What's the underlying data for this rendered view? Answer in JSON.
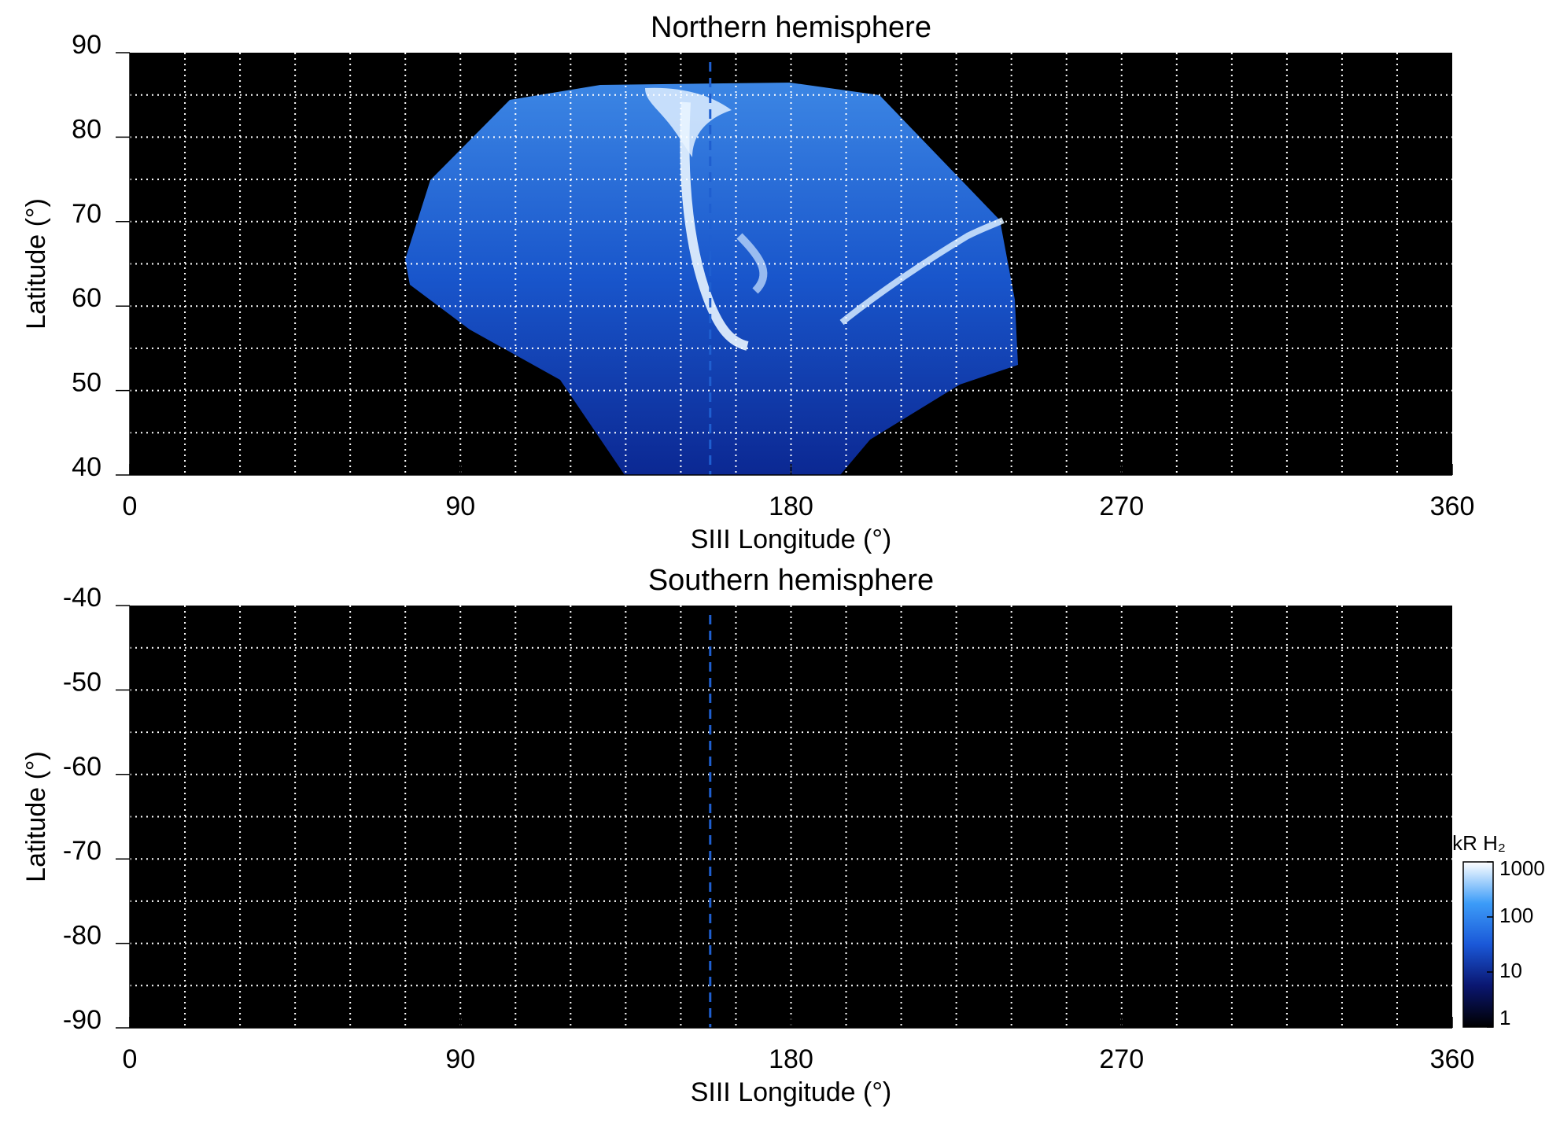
{
  "chart_data": [
    {
      "type": "heatmap",
      "title": "Northern hemisphere",
      "x_label": "SIII Longitude (°)",
      "y_label": "Latitude (°)",
      "xlim": [
        0,
        360
      ],
      "xticks": [
        0,
        90,
        180,
        270,
        360
      ],
      "ylim": [
        40,
        90
      ],
      "yticks": [
        40,
        50,
        60,
        70,
        80,
        90
      ],
      "xgrid": [
        15,
        30,
        45,
        60,
        75,
        90,
        105,
        120,
        135,
        150,
        165,
        180,
        195,
        210,
        225,
        240,
        255,
        270,
        285,
        300,
        315,
        330,
        345
      ],
      "ygrid": [
        45,
        50,
        55,
        60,
        65,
        70,
        75,
        80,
        85
      ],
      "reference_longitude": 158,
      "reference_color": "#1f5fd0",
      "background": "#000000",
      "grid_color": "#ffffff"
    },
    {
      "type": "heatmap",
      "title": "Southern hemisphere",
      "x_label": "SIII Longitude (°)",
      "y_label": "Latitude (°)",
      "xlim": [
        0,
        360
      ],
      "xticks": [
        0,
        90,
        180,
        270,
        360
      ],
      "ylim": [
        -90,
        -40
      ],
      "yticks": [
        -90,
        -80,
        -70,
        -60,
        -50,
        -40
      ],
      "xgrid": [
        15,
        30,
        45,
        60,
        75,
        90,
        105,
        120,
        135,
        150,
        165,
        180,
        195,
        210,
        225,
        240,
        255,
        270,
        285,
        300,
        315,
        330,
        345
      ],
      "ygrid": [
        -85,
        -80,
        -75,
        -70,
        -65,
        -60,
        -55,
        -50,
        -45
      ],
      "reference_longitude": 158,
      "reference_color": "#1f5fd0",
      "background": "#000000",
      "grid_color": "#ffffff",
      "colorbar": {
        "label": "kR H₂",
        "log_scale": true,
        "lim": [
          1,
          1000
        ],
        "ticks": [
          1,
          10,
          100,
          1000
        ],
        "colormap": [
          "#000000",
          "#0a1670",
          "#1a58d8",
          "#3c9cf8",
          "#ffffff"
        ]
      }
    }
  ]
}
